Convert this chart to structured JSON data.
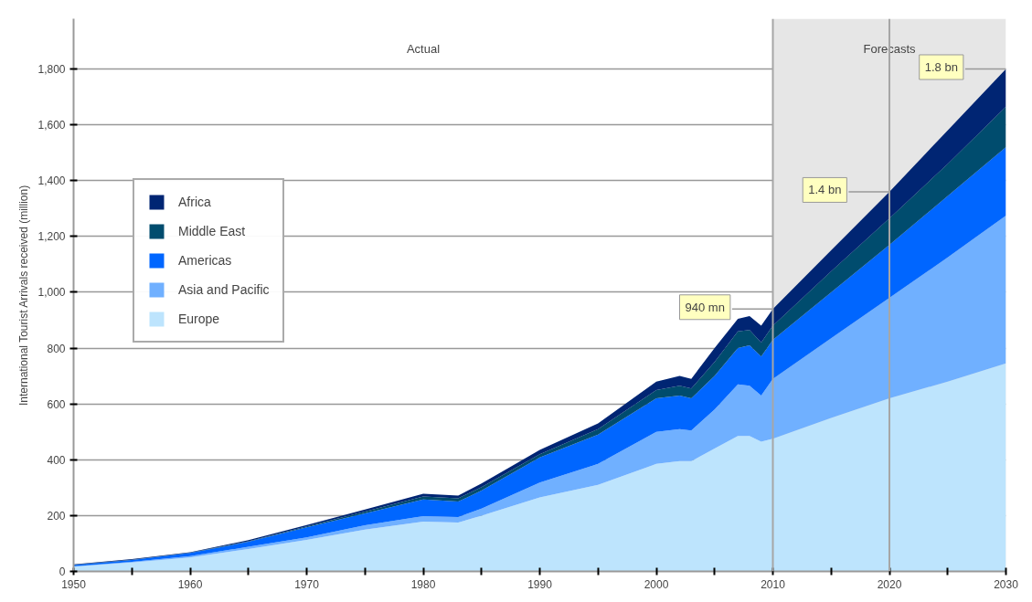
{
  "chart_data": {
    "type": "area",
    "stacked": true,
    "ylabel": "International Tourist Arrivals received (million)",
    "x": [
      1950,
      1955,
      1960,
      1965,
      1970,
      1975,
      1980,
      1983,
      1985,
      1990,
      1995,
      2000,
      2002,
      2003,
      2005,
      2007,
      2008,
      2009,
      2010,
      2015,
      2020,
      2025,
      2030
    ],
    "series": [
      {
        "name": "Europe",
        "color": "#bde4fd",
        "values": [
          17,
          32,
          50,
          80,
          113,
          150,
          178,
          175,
          200,
          265,
          310,
          385,
          395,
          395,
          440,
          485,
          485,
          465,
          475,
          550,
          620,
          680,
          745
        ]
      },
      {
        "name": "Asia and Pacific",
        "color": "#70b0ff",
        "values": [
          1,
          2,
          5,
          8,
          9,
          15,
          20,
          20,
          25,
          53,
          75,
          115,
          115,
          110,
          140,
          185,
          180,
          165,
          215,
          285,
          360,
          445,
          530
        ]
      },
      {
        "name": "Americas",
        "color": "#0066ff",
        "values": [
          5,
          7,
          11,
          18,
          36,
          43,
          60,
          55,
          65,
          90,
          105,
          120,
          120,
          115,
          120,
          130,
          145,
          140,
          140,
          165,
          190,
          220,
          245
        ]
      },
      {
        "name": "Middle East",
        "color": "#004c6e",
        "values": [
          1,
          1,
          1,
          2,
          3,
          6,
          10,
          12,
          12,
          12,
          20,
          30,
          35,
          35,
          50,
          60,
          55,
          50,
          50,
          75,
          95,
          115,
          145
        ]
      },
      {
        "name": "Africa",
        "color": "#002573",
        "values": [
          1,
          2,
          2,
          4,
          5,
          8,
          10,
          10,
          13,
          15,
          20,
          30,
          35,
          35,
          50,
          45,
          50,
          60,
          60,
          75,
          95,
          120,
          135
        ]
      }
    ],
    "xlim": [
      1950,
      2030
    ],
    "xticks": [
      1950,
      {
        "value": 1955,
        "label": null
      },
      1960,
      {
        "value": 1965,
        "label": null
      },
      1970,
      {
        "value": 1975,
        "label": null
      },
      1980,
      {
        "value": 1985,
        "label": null
      },
      1990,
      {
        "value": 1995,
        "label": null
      },
      2000,
      {
        "value": 2005,
        "label": null
      },
      2010,
      {
        "value": 2015,
        "label": null
      },
      2020,
      {
        "value": 2025,
        "label": null
      },
      2030
    ],
    "ylim": [
      0,
      1980
    ],
    "yticks": [
      0,
      200,
      400,
      600,
      800,
      {
        "value": 1000,
        "label": "1,000"
      },
      {
        "value": 1200,
        "label": "1,200"
      },
      {
        "value": 1400,
        "label": "1,400"
      },
      {
        "value": 1600,
        "label": "1,600"
      },
      {
        "value": 1800,
        "label": "1,800"
      }
    ],
    "grid": "y",
    "legend": "top left",
    "bands": [
      {
        "axis": "x",
        "from": 2010,
        "to": 2030,
        "label": "Forecasts",
        "color": "#e6e6e6"
      }
    ],
    "ref_lines": [
      {
        "axis": "x",
        "value": 2010,
        "color": "#a6a6a6"
      },
      {
        "axis": "x",
        "value": 2020,
        "color": "#a6a6a6"
      }
    ],
    "annotations": [
      "Actual",
      {
        "text": "940 mn",
        "x": 2010,
        "y": 940
      },
      {
        "text": "1.4 bn",
        "x": 2020,
        "y": 1360
      },
      {
        "text": "1.8 bn",
        "x": 2030,
        "y": 1800
      }
    ]
  }
}
